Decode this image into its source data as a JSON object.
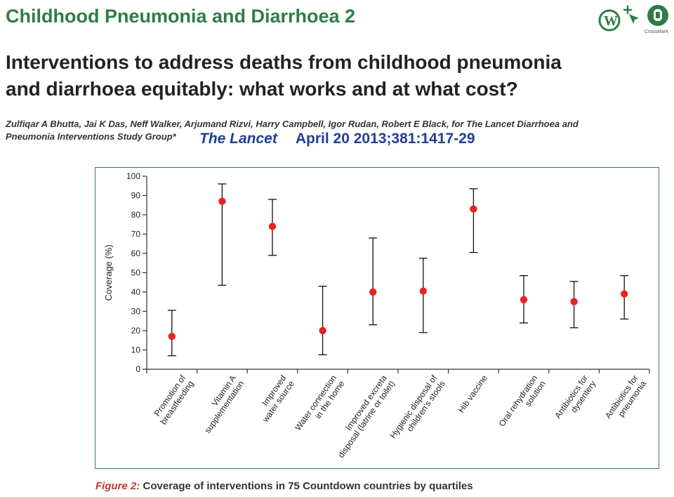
{
  "header": {
    "series_title": "Childhood Pneumonia and Diarrhoea 2",
    "main_title": "Interventions to address deaths from childhood pneumonia and diarrhoea equitably: what works and at what cost?",
    "authors": "Zulfiqar A Bhutta, Jai K Das, Neff Walker, Arjumand Rizvi, Harry Campbell, Igor Rudan, Robert E Black, for The Lancet Diarrhoea and Pneumonia Interventions Study Group*",
    "citation_journal": "The Lancet",
    "citation_ref": "April 20  2013;381:1417-29",
    "crossmark_label": "CrossMark"
  },
  "caption": {
    "figure_label": "Figure 2:",
    "text": "Coverage of interventions in 75 Countdown countries by quartiles"
  },
  "colors": {
    "marker": "#e8231f",
    "series_title": "#2e7d45",
    "citation": "#1f3f99",
    "frame": "#2e7d45"
  },
  "chart_data": {
    "type": "scatter",
    "ylabel": "Coverage (%)",
    "xlabel": "",
    "ylim": [
      0,
      100
    ],
    "yticks": [
      0,
      10,
      20,
      30,
      40,
      50,
      60,
      70,
      80,
      90,
      100
    ],
    "grid": false,
    "categories": [
      [
        "Promotion of",
        "breastfeeding"
      ],
      [
        "Vitamin A",
        "supplementation"
      ],
      [
        "Improved",
        "water source"
      ],
      [
        "Water connection",
        "in the home"
      ],
      [
        "Improved excreta",
        "disposal (latrine or toilet)"
      ],
      [
        "Hygienic disposal of",
        "children's stools"
      ],
      [
        "Hib vaccine"
      ],
      [
        "Oral rehydration",
        "solution"
      ],
      [
        "Antibiotics for",
        "dysentery"
      ],
      [
        "Antibiotics for",
        "pneumonia"
      ]
    ],
    "median": [
      17,
      87,
      74,
      20,
      40,
      40.5,
      83,
      36,
      35,
      39
    ],
    "lower": [
      7,
      43.5,
      59,
      7.5,
      23,
      19,
      60.5,
      24,
      21.5,
      26
    ],
    "upper": [
      30.5,
      96,
      88,
      43,
      68,
      57.5,
      93.5,
      48.5,
      45.5,
      48.5
    ]
  }
}
